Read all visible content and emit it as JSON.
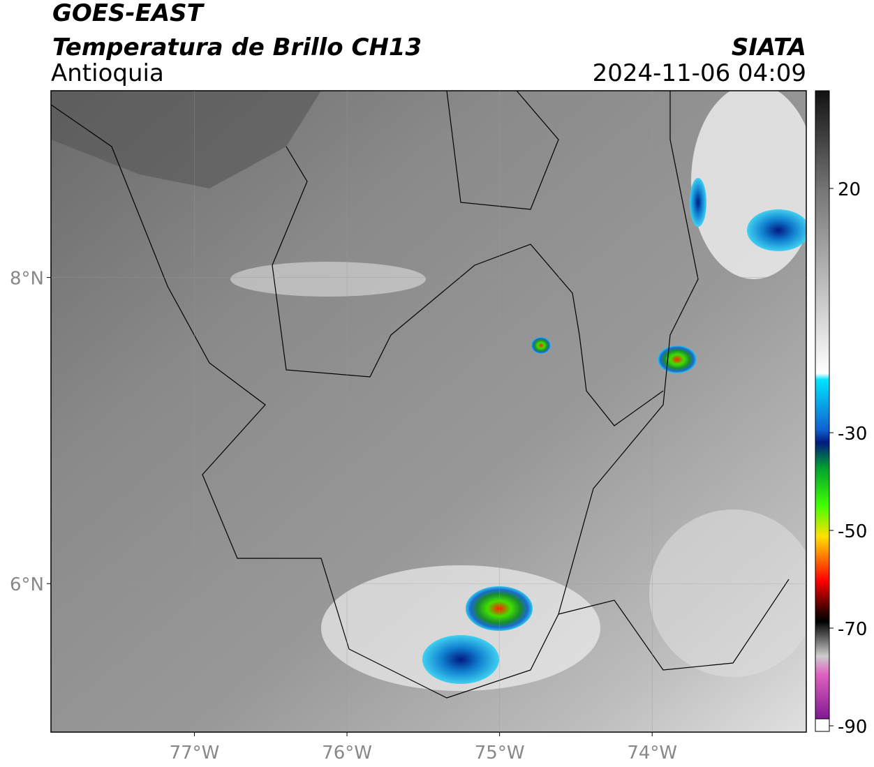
{
  "header": {
    "title": "GOES-EAST",
    "subtitle": "Temperatura de Brillo CH13",
    "region": "Antioquia",
    "source": "SIATA",
    "datetime": "2024-11-06 04:09"
  },
  "map": {
    "xlim": [
      -77.94,
      -72.99
    ],
    "ylim": [
      5.03,
      9.22
    ],
    "xticks": [
      {
        "value": -77,
        "label": "77°W"
      },
      {
        "value": -76,
        "label": "76°W"
      },
      {
        "value": -75,
        "label": "75°W"
      },
      {
        "value": -74,
        "label": "74°W"
      }
    ],
    "yticks": [
      {
        "value": 8,
        "label": "8°N"
      },
      {
        "value": 6,
        "label": "6°N"
      }
    ]
  },
  "colorbar": {
    "lim": [
      -90,
      40
    ],
    "ticks": [
      20,
      -30,
      -50,
      -70,
      -90
    ]
  }
}
